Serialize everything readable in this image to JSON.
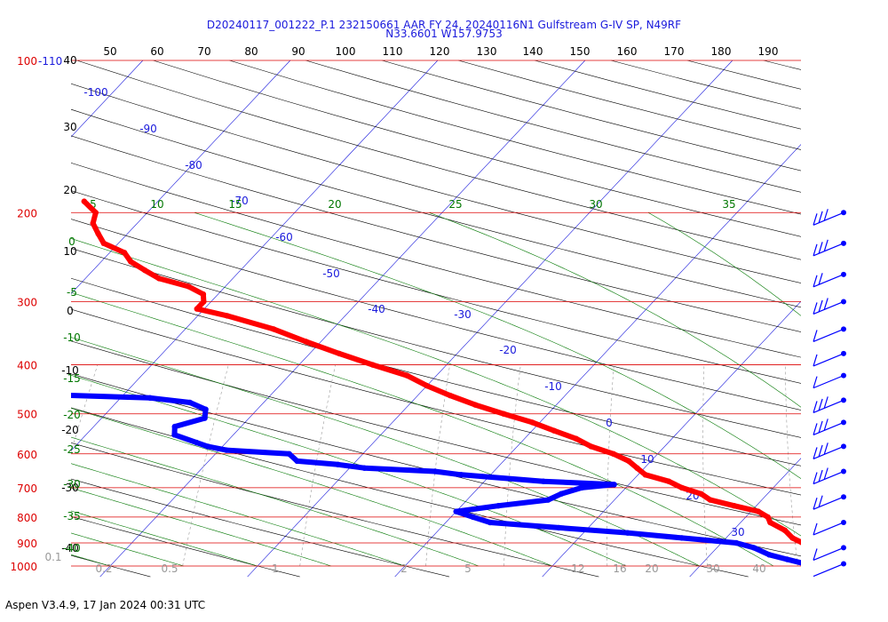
{
  "title": {
    "line1": "D20240117_001222_P.1 232150661 AAR FY 24, 20240116N1 Gulfstream G-IV SP, N49RF",
    "line2": "N33.6601 W157.9753"
  },
  "footer": "Aspen V3.4.9, 17 Jan 2024  00:31 UTC",
  "colors": {
    "isobar": "#dd0000",
    "isotherm": "#1a1adc",
    "dry_adiabat": "#000000",
    "moist_adiabat": "#007700",
    "mixing_ratio": "#999999",
    "temperature": "#ff0000",
    "dewpoint": "#0000ff",
    "wind": "#0000ff"
  },
  "chart_data": {
    "type": "skew-t",
    "pressure_labels": [
      {
        "p": 100,
        "label": "100"
      },
      {
        "p": 200,
        "label": "200"
      },
      {
        "p": 300,
        "label": "300"
      },
      {
        "p": 400,
        "label": "400"
      },
      {
        "p": 500,
        "label": "500"
      },
      {
        "p": 600,
        "label": "600"
      },
      {
        "p": 700,
        "label": "700"
      },
      {
        "p": 800,
        "label": "800"
      },
      {
        "p": 900,
        "label": "900"
      },
      {
        "p": 1000,
        "label": "1000"
      }
    ],
    "top_isotherm_label": "-110",
    "theta_labels": [
      "50",
      "60",
      "70",
      "80",
      "90",
      "100",
      "110",
      "120",
      "130",
      "140",
      "150",
      "160",
      "170",
      "180",
      "190"
    ],
    "left_theta_labels": [
      "40",
      "30",
      "20",
      "10",
      "0",
      "-10",
      "-20",
      "-30",
      "-40"
    ],
    "isotherm_labels": [
      {
        "t": -100,
        "label": "-100"
      },
      {
        "t": -90,
        "label": "-90"
      },
      {
        "t": -80,
        "label": "-80"
      },
      {
        "t": -70,
        "label": "-70"
      },
      {
        "t": -60,
        "label": "-60"
      },
      {
        "t": -50,
        "label": "-50"
      },
      {
        "t": -40,
        "label": "-40"
      },
      {
        "t": -30,
        "label": "-30"
      },
      {
        "t": -20,
        "label": "-20"
      },
      {
        "t": -10,
        "label": "-10"
      },
      {
        "t": 0,
        "label": "0"
      },
      {
        "t": 10,
        "label": "10"
      },
      {
        "t": 20,
        "label": "20"
      },
      {
        "t": 30,
        "label": "30"
      }
    ],
    "moist_labels_top": [
      "5",
      "10",
      "15",
      "20",
      "25",
      "30",
      "35"
    ],
    "moist_labels_left": [
      "0",
      "-5",
      "-10",
      "-15",
      "-20",
      "-25",
      "-30",
      "-35",
      "-40"
    ],
    "mixing_ratio_labels": [
      "0.1",
      "0.2",
      "0.5",
      "1",
      "2",
      "5",
      "12",
      "16",
      "20",
      "30",
      "40"
    ],
    "temperature": [
      [
        1000,
        23.0
      ],
      [
        980,
        20.5
      ],
      [
        960,
        19.0
      ],
      [
        930,
        17.5
      ],
      [
        900,
        15.5
      ],
      [
        880,
        14.5
      ],
      [
        850,
        13.5
      ],
      [
        820,
        12.0
      ],
      [
        800,
        11.5
      ],
      [
        780,
        10.5
      ],
      [
        760,
        8.5
      ],
      [
        740,
        6.5
      ],
      [
        720,
        5.5
      ],
      [
        700,
        3.8
      ],
      [
        680,
        2.5
      ],
      [
        660,
        0.5
      ],
      [
        640,
        -0.5
      ],
      [
        620,
        -1.5
      ],
      [
        600,
        -3.0
      ],
      [
        580,
        -5.0
      ],
      [
        560,
        -6.5
      ],
      [
        540,
        -8.5
      ],
      [
        520,
        -10.5
      ],
      [
        500,
        -13.0
      ],
      [
        480,
        -15.5
      ],
      [
        460,
        -17.8
      ],
      [
        440,
        -20.0
      ],
      [
        420,
        -22.0
      ],
      [
        400,
        -25.0
      ],
      [
        380,
        -28.0
      ],
      [
        360,
        -31.0
      ],
      [
        340,
        -34.0
      ],
      [
        320,
        -38.0
      ],
      [
        310,
        -40.5
      ],
      [
        300,
        -40.5
      ],
      [
        290,
        -41.0
      ],
      [
        280,
        -42.5
      ],
      [
        270,
        -45.0
      ],
      [
        260,
        -46.5
      ],
      [
        250,
        -48.0
      ],
      [
        240,
        -49.0
      ],
      [
        230,
        -51.0
      ],
      [
        220,
        -52.0
      ],
      [
        210,
        -53.0
      ],
      [
        200,
        -53.5
      ],
      [
        190,
        -55.0
      ]
    ],
    "dewpoint": [
      [
        990,
        17.0
      ],
      [
        970,
        15.5
      ],
      [
        950,
        14.0
      ],
      [
        920,
        12.5
      ],
      [
        900,
        11.0
      ],
      [
        880,
        7.0
      ],
      [
        860,
        3.0
      ],
      [
        840,
        -2.0
      ],
      [
        820,
        -7.0
      ],
      [
        800,
        -8.5
      ],
      [
        780,
        -10.0
      ],
      [
        760,
        -7.5
      ],
      [
        740,
        -4.5
      ],
      [
        720,
        -4.0
      ],
      [
        700,
        -3.0
      ],
      [
        690,
        -1.0
      ],
      [
        680,
        -6.0
      ],
      [
        660,
        -12.0
      ],
      [
        650,
        -14.0
      ],
      [
        640,
        -19.0
      ],
      [
        630,
        -21.0
      ],
      [
        620,
        -24.0
      ],
      [
        600,
        -25.0
      ],
      [
        590,
        -29.5
      ],
      [
        580,
        -31.0
      ],
      [
        570,
        -32.0
      ],
      [
        550,
        -34.0
      ],
      [
        530,
        -34.5
      ],
      [
        510,
        -33.0
      ],
      [
        490,
        -33.5
      ],
      [
        475,
        -35.0
      ],
      [
        465,
        -38.0
      ],
      [
        450,
        -54.0
      ],
      [
        440,
        -60.0
      ],
      [
        420,
        -66.0
      ],
      [
        405,
        -70.0
      ],
      [
        395,
        -71.0
      ],
      [
        385,
        -73.0
      ],
      [
        380,
        -66.0
      ],
      [
        375,
        -63.0
      ],
      [
        370,
        -59.0
      ],
      [
        360,
        -58.0
      ],
      [
        350,
        -63.0
      ],
      [
        345,
        -66.0
      ],
      [
        335,
        -72.0
      ],
      [
        320,
        -79.0
      ],
      [
        300,
        -85.5
      ],
      [
        280,
        -85.5
      ],
      [
        270,
        -86.0
      ],
      [
        255,
        -90.0
      ],
      [
        245,
        -93.5
      ],
      [
        235,
        -95.0
      ],
      [
        230,
        -93.0
      ],
      [
        225,
        -92.0
      ],
      [
        218,
        -90.5
      ]
    ],
    "wind_barbs": [
      {
        "p": 200,
        "count": 3
      },
      {
        "p": 230,
        "count": 3
      },
      {
        "p": 265,
        "count": 2
      },
      {
        "p": 300,
        "count": 3
      },
      {
        "p": 340,
        "count": 1
      },
      {
        "p": 380,
        "count": 1
      },
      {
        "p": 420,
        "count": 1
      },
      {
        "p": 470,
        "count": 3
      },
      {
        "p": 520,
        "count": 3
      },
      {
        "p": 580,
        "count": 3
      },
      {
        "p": 650,
        "count": 3
      },
      {
        "p": 730,
        "count": 2
      },
      {
        "p": 820,
        "count": 1
      },
      {
        "p": 920,
        "count": 1
      },
      {
        "p": 990,
        "count": 0
      }
    ]
  }
}
